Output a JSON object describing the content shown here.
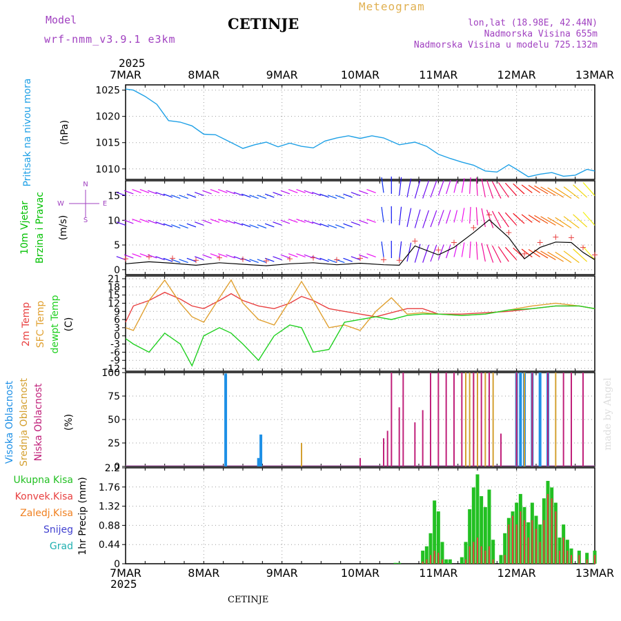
{
  "header": {
    "model_label": "Model",
    "model_name": "wrf-nmm_v3.9.1 e3km",
    "station": "CETINJE",
    "title": "Meteogram",
    "lonlat": "lon,lat (18.98E, 42.44N)",
    "elevation": "Nadmorska Visina 655m",
    "model_elevation": "Nadmorska Visina u modelu 725.132m"
  },
  "footer": {
    "year": "2025",
    "station": "CETINJE",
    "credit": "made by Angel"
  },
  "colors": {
    "pressure": "#1ea0e6",
    "wind_label": "#00c000",
    "temp2m": "#e84040",
    "sfc": "#e0a030",
    "dewpt": "#20d020",
    "high_cloud": "#1e90e6",
    "mid_cloud": "#d4a030",
    "low_cloud": "#c0207a",
    "total_precip": "#22c022",
    "conv_precip": "#e84040",
    "frz_precip": "#f08020",
    "snow": "#4040d0",
    "hail": "#20b0b0"
  },
  "chart_data": [
    {
      "id": "pressure",
      "type": "line",
      "ylabel": "Pritisak na nivou mora",
      "unit": "(hPa)",
      "ylim": [
        1008,
        1026
      ],
      "yticks": [
        1010,
        1015,
        1020,
        1025
      ],
      "x_days": [
        "7MAR",
        "8MAR",
        "9MAR",
        "10MAR",
        "11MAR",
        "12MAR",
        "13MAR"
      ],
      "x": [
        0,
        0.1,
        0.25,
        0.4,
        0.55,
        0.7,
        0.85,
        1.0,
        1.15,
        1.3,
        1.5,
        1.65,
        1.8,
        1.95,
        2.1,
        2.25,
        2.4,
        2.55,
        2.7,
        2.85,
        3.0,
        3.15,
        3.3,
        3.5,
        3.7,
        3.85,
        4.0,
        4.15,
        4.3,
        4.45,
        4.6,
        4.75,
        4.9,
        5.0,
        5.15,
        5.3,
        5.45,
        5.6,
        5.75,
        5.9,
        6.0
      ],
      "values": [
        1025.2,
        1025.0,
        1023.8,
        1022.3,
        1019.2,
        1018.9,
        1018.2,
        1016.6,
        1016.5,
        1015.4,
        1013.9,
        1014.6,
        1015.1,
        1014.2,
        1014.9,
        1014.3,
        1014.0,
        1015.3,
        1015.9,
        1016.3,
        1015.8,
        1016.3,
        1015.9,
        1014.6,
        1015.1,
        1014.3,
        1012.8,
        1012.0,
        1011.3,
        1010.7,
        1009.6,
        1009.4,
        1010.8,
        1009.9,
        1008.5,
        1009.0,
        1009.3,
        1008.6,
        1008.8,
        1009.9,
        1009.6
      ]
    },
    {
      "id": "wind",
      "type": "line",
      "ylabel": "10m Vjetar",
      "ylabel2": "Brzina i Pravac",
      "unit": "(m/s)",
      "compass": "N",
      "compass_e": "E",
      "compass_w": "W",
      "compass_s": "S",
      "ylim": [
        -1,
        18
      ],
      "yticks": [
        0,
        5,
        10,
        15
      ],
      "x": [
        0,
        0.3,
        0.6,
        0.9,
        1.2,
        1.5,
        1.8,
        2.1,
        2.4,
        2.7,
        3.0,
        3.3,
        3.5,
        3.7,
        4.0,
        4.2,
        4.45,
        4.65,
        4.9,
        5.1,
        5.3,
        5.5,
        5.7,
        5.85,
        6.0
      ],
      "values": [
        1.2,
        1.6,
        1.3,
        0.9,
        1.4,
        1.1,
        0.8,
        1.2,
        1.4,
        1.0,
        1.3,
        1.0,
        0.9,
        4.8,
        3.0,
        4.5,
        7.5,
        10.1,
        6.5,
        2.2,
        4.5,
        5.6,
        5.5,
        3.5,
        2.0
      ]
    },
    {
      "id": "temperature",
      "type": "line",
      "labels": [
        "2m Temp",
        "SFC Temp",
        "dewpt Temp"
      ],
      "unit": "(C)",
      "ylim": [
        -13,
        22
      ],
      "yticks": [
        -12,
        -9,
        -6,
        -3,
        0,
        3,
        6,
        9,
        12,
        15,
        18,
        21
      ],
      "x": [
        0,
        0.1,
        0.3,
        0.5,
        0.7,
        0.85,
        1.0,
        1.2,
        1.35,
        1.5,
        1.7,
        1.9,
        2.1,
        2.25,
        2.4,
        2.6,
        2.8,
        3.0,
        3.2,
        3.4,
        3.6,
        3.8,
        4.0,
        4.3,
        4.6,
        4.9,
        5.2,
        5.5,
        5.8,
        6.0
      ],
      "series": [
        {
          "name": "2m Temp",
          "values": [
            5.0,
            11.0,
            13.0,
            16.0,
            13.5,
            11.0,
            10.0,
            13.0,
            15.5,
            13.0,
            11.0,
            10.0,
            12.0,
            14.5,
            13.0,
            10.0,
            9.0,
            8.0,
            7.0,
            8.5,
            10.0,
            10.0,
            8.0,
            8.0,
            8.5,
            9.0,
            10.0,
            11.0,
            11.0,
            10.0
          ]
        },
        {
          "name": "SFC Temp",
          "values": [
            3.0,
            2.0,
            13.0,
            20.5,
            12.0,
            7.0,
            5.0,
            14.0,
            20.5,
            12.0,
            6.0,
            4.0,
            13.0,
            20.0,
            13.0,
            3.0,
            4.0,
            2.0,
            9.0,
            14.0,
            8.0,
            8.5,
            8.0,
            7.5,
            8.0,
            9.5,
            11.0,
            12.0,
            11.0,
            10.0
          ]
        },
        {
          "name": "dewpt Temp",
          "values": [
            -1.0,
            -3.0,
            -6.0,
            1.0,
            -3.0,
            -11.0,
            0.0,
            3.0,
            1.0,
            -3.0,
            -9.0,
            0.0,
            4.0,
            3.0,
            -6.0,
            -5.0,
            5.0,
            6.0,
            7.0,
            6.0,
            7.5,
            8.0,
            8.0,
            7.5,
            8.0,
            9.5,
            10.0,
            11.0,
            11.0,
            10.0
          ]
        }
      ]
    },
    {
      "id": "clouds",
      "type": "bar",
      "labels": [
        "Visoka Oblacnost",
        "Srednja Oblacnost",
        "Niska Oblacnost"
      ],
      "unit": "(%)",
      "ylim": [
        0,
        100
      ],
      "yticks": [
        0,
        25,
        50,
        75,
        100
      ],
      "series": [
        {
          "name": "Visoka",
          "x": [
            1.28,
            1.7,
            1.73,
            5.0,
            5.05,
            5.1,
            5.2,
            5.3,
            5.4
          ],
          "values": [
            99,
            9,
            34,
            100,
            100,
            100,
            100,
            100,
            100
          ]
        },
        {
          "name": "Srednja",
          "x": [
            2.25,
            4.35,
            4.4,
            4.45,
            4.5,
            4.6,
            4.7,
            5.0,
            5.1,
            5.2,
            5.4,
            5.5
          ],
          "values": [
            25,
            100,
            100,
            100,
            100,
            100,
            100,
            100,
            100,
            100,
            100,
            100
          ]
        },
        {
          "name": "Niska",
          "x": [
            3.0,
            3.3,
            3.35,
            3.4,
            3.5,
            3.55,
            3.7,
            3.8,
            3.9,
            4.0,
            4.1,
            4.2,
            4.3,
            4.45,
            4.55,
            4.65,
            4.8,
            5.0,
            5.2,
            5.4,
            5.6,
            5.7,
            5.85
          ],
          "values": [
            9,
            30,
            38,
            100,
            63,
            100,
            47,
            60,
            100,
            100,
            100,
            100,
            100,
            100,
            100,
            100,
            35,
            100,
            100,
            100,
            100,
            100,
            100
          ]
        }
      ]
    },
    {
      "id": "precip",
      "type": "bar",
      "labels": [
        "Ukupna Kisa",
        "Konvek.Kisa",
        "Zaledj.Kisa",
        "Snijeg",
        "Grad"
      ],
      "ylabel": "1hr Precip (mm)",
      "ylim": [
        0,
        2.2
      ],
      "yticks": [
        0,
        0.44,
        0.88,
        1.32,
        1.76,
        2.2
      ],
      "x": [
        3.45,
        3.5,
        3.8,
        3.85,
        3.9,
        3.95,
        4.0,
        4.05,
        4.1,
        4.15,
        4.3,
        4.35,
        4.4,
        4.45,
        4.5,
        4.55,
        4.6,
        4.65,
        4.7,
        4.8,
        4.85,
        4.9,
        4.95,
        5.0,
        5.05,
        5.1,
        5.15,
        5.2,
        5.25,
        5.3,
        5.35,
        5.4,
        5.45,
        5.5,
        5.55,
        5.6,
        5.65,
        5.7,
        5.8,
        5.9,
        6.0
      ],
      "values": [
        0.02,
        0.02,
        0.3,
        0.4,
        0.7,
        1.45,
        1.2,
        0.5,
        0.1,
        0.1,
        0.15,
        0.5,
        1.25,
        1.75,
        2.05,
        1.55,
        1.3,
        1.7,
        0.55,
        0.2,
        0.7,
        1.05,
        1.2,
        1.4,
        1.6,
        1.3,
        0.95,
        1.4,
        1.1,
        0.9,
        1.5,
        1.9,
        1.75,
        1.4,
        0.6,
        0.9,
        0.55,
        0.35,
        0.3,
        0.25,
        0.3
      ],
      "conv_values": [
        0.0,
        0.0,
        0.05,
        0.1,
        0.2,
        0.3,
        0.25,
        0.1,
        0.0,
        0.0,
        0.0,
        0.1,
        0.4,
        0.5,
        0.6,
        0.4,
        0.3,
        0.4,
        0.1,
        0.0,
        0.2,
        0.9,
        1.1,
        0.9,
        1.2,
        1.0,
        0.6,
        1.0,
        0.8,
        0.5,
        1.0,
        1.6,
        1.5,
        1.2,
        0.3,
        0.6,
        0.3,
        0.2,
        0.2,
        0.1,
        0.2
      ]
    }
  ]
}
